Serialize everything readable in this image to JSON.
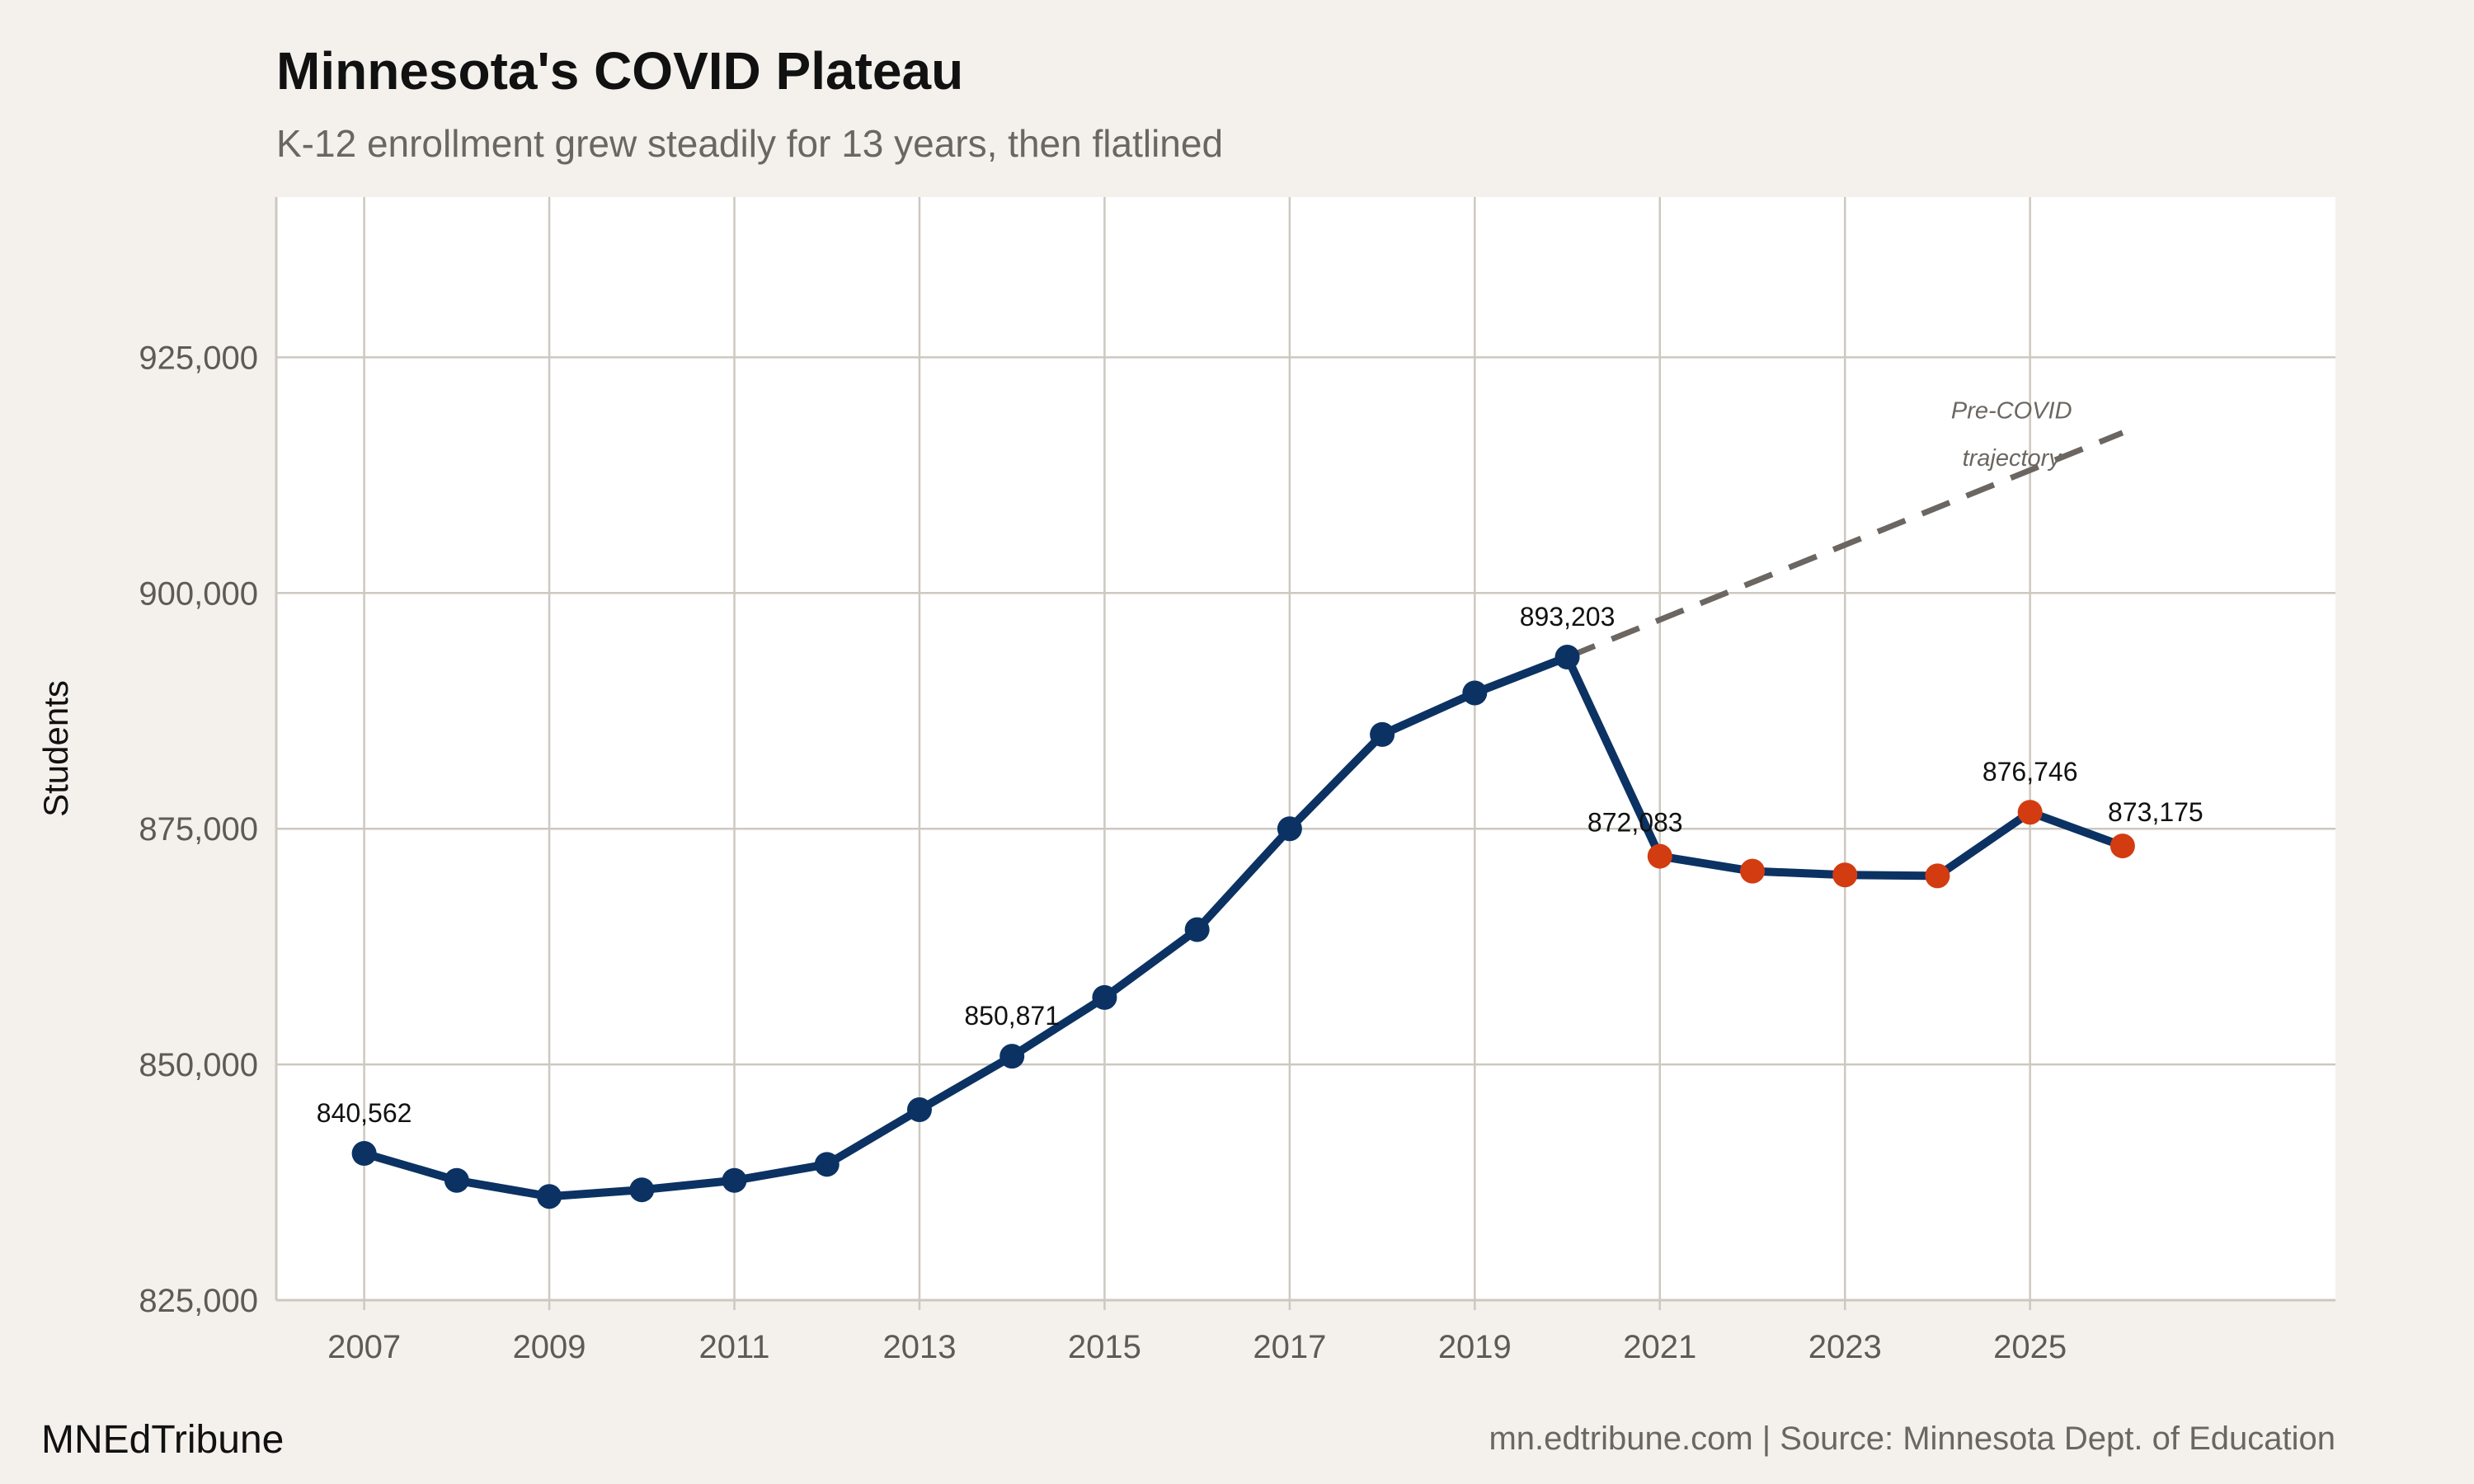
{
  "header": {
    "title": "Minnesota's COVID Plateau",
    "subtitle": "K-12 enrollment grew steadily for 13 years, then flatlined"
  },
  "footer": {
    "brand": "MNEdTribune",
    "source": "mn.edtribune.com | Source: Minnesota Dept. of Education"
  },
  "chart_data": {
    "type": "line",
    "title": "Minnesota's COVID Plateau",
    "subtitle": "K-12 enrollment grew steadily for 13 years, then flatlined",
    "xlabel": "",
    "ylabel": "Students",
    "xlim": [
      2006.05,
      2028.3
    ],
    "ylim": [
      825000,
      942000
    ],
    "x_ticks": [
      "2007",
      "2009",
      "2011",
      "2013",
      "2015",
      "2017",
      "2019",
      "2021",
      "2023",
      "2025"
    ],
    "y_ticks": [
      "825,000",
      "850,000",
      "875,000",
      "900,000",
      "925,000"
    ],
    "y_tick_values": [
      825000,
      850000,
      875000,
      900000,
      925000
    ],
    "grid": true,
    "colors": {
      "pre_covid": "#0b3263",
      "post_covid": "#d23c10",
      "line": "#0b3263",
      "trajectory": "#6b6661",
      "grid": "#cdc8c0",
      "panel": "#ffffff",
      "background": "#f4f1ec"
    },
    "series": [
      {
        "x": [
          2007,
          2008,
          2009,
          2010,
          2011,
          2012,
          2013,
          2014,
          2015,
          2016,
          2017,
          2018,
          2019,
          2020,
          2021,
          2022,
          2023,
          2024,
          2025,
          2026
        ],
        "y": [
          840562,
          837700,
          836000,
          836700,
          837700,
          839400,
          845200,
          850871,
          857100,
          864300,
          875000,
          885000,
          889400,
          893203,
          872083,
          870500,
          870100,
          870000,
          876746,
          873175
        ],
        "point_group": [
          "pre",
          "pre",
          "pre",
          "pre",
          "pre",
          "pre",
          "pre",
          "pre",
          "pre",
          "pre",
          "pre",
          "pre",
          "pre",
          "pre",
          "post",
          "post",
          "post",
          "post",
          "post",
          "post"
        ]
      }
    ],
    "trajectory": {
      "x": [
        2020,
        2026
      ],
      "y": [
        893203,
        917000
      ],
      "style": "dashed"
    },
    "annotations": [
      {
        "text": "Pre-COVID",
        "x": 2024.8,
        "y": 918500
      },
      {
        "text": "trajectory",
        "x": 2024.8,
        "y": 913500
      }
    ],
    "data_labels": [
      {
        "x": 2007,
        "text": "840,562"
      },
      {
        "x": 2014,
        "text": "850,871"
      },
      {
        "x": 2020,
        "text": "893,203"
      },
      {
        "x": 2021,
        "text": "872,083"
      },
      {
        "x": 2025,
        "text": "876,746"
      },
      {
        "x": 2026,
        "text": "873,175"
      }
    ]
  }
}
